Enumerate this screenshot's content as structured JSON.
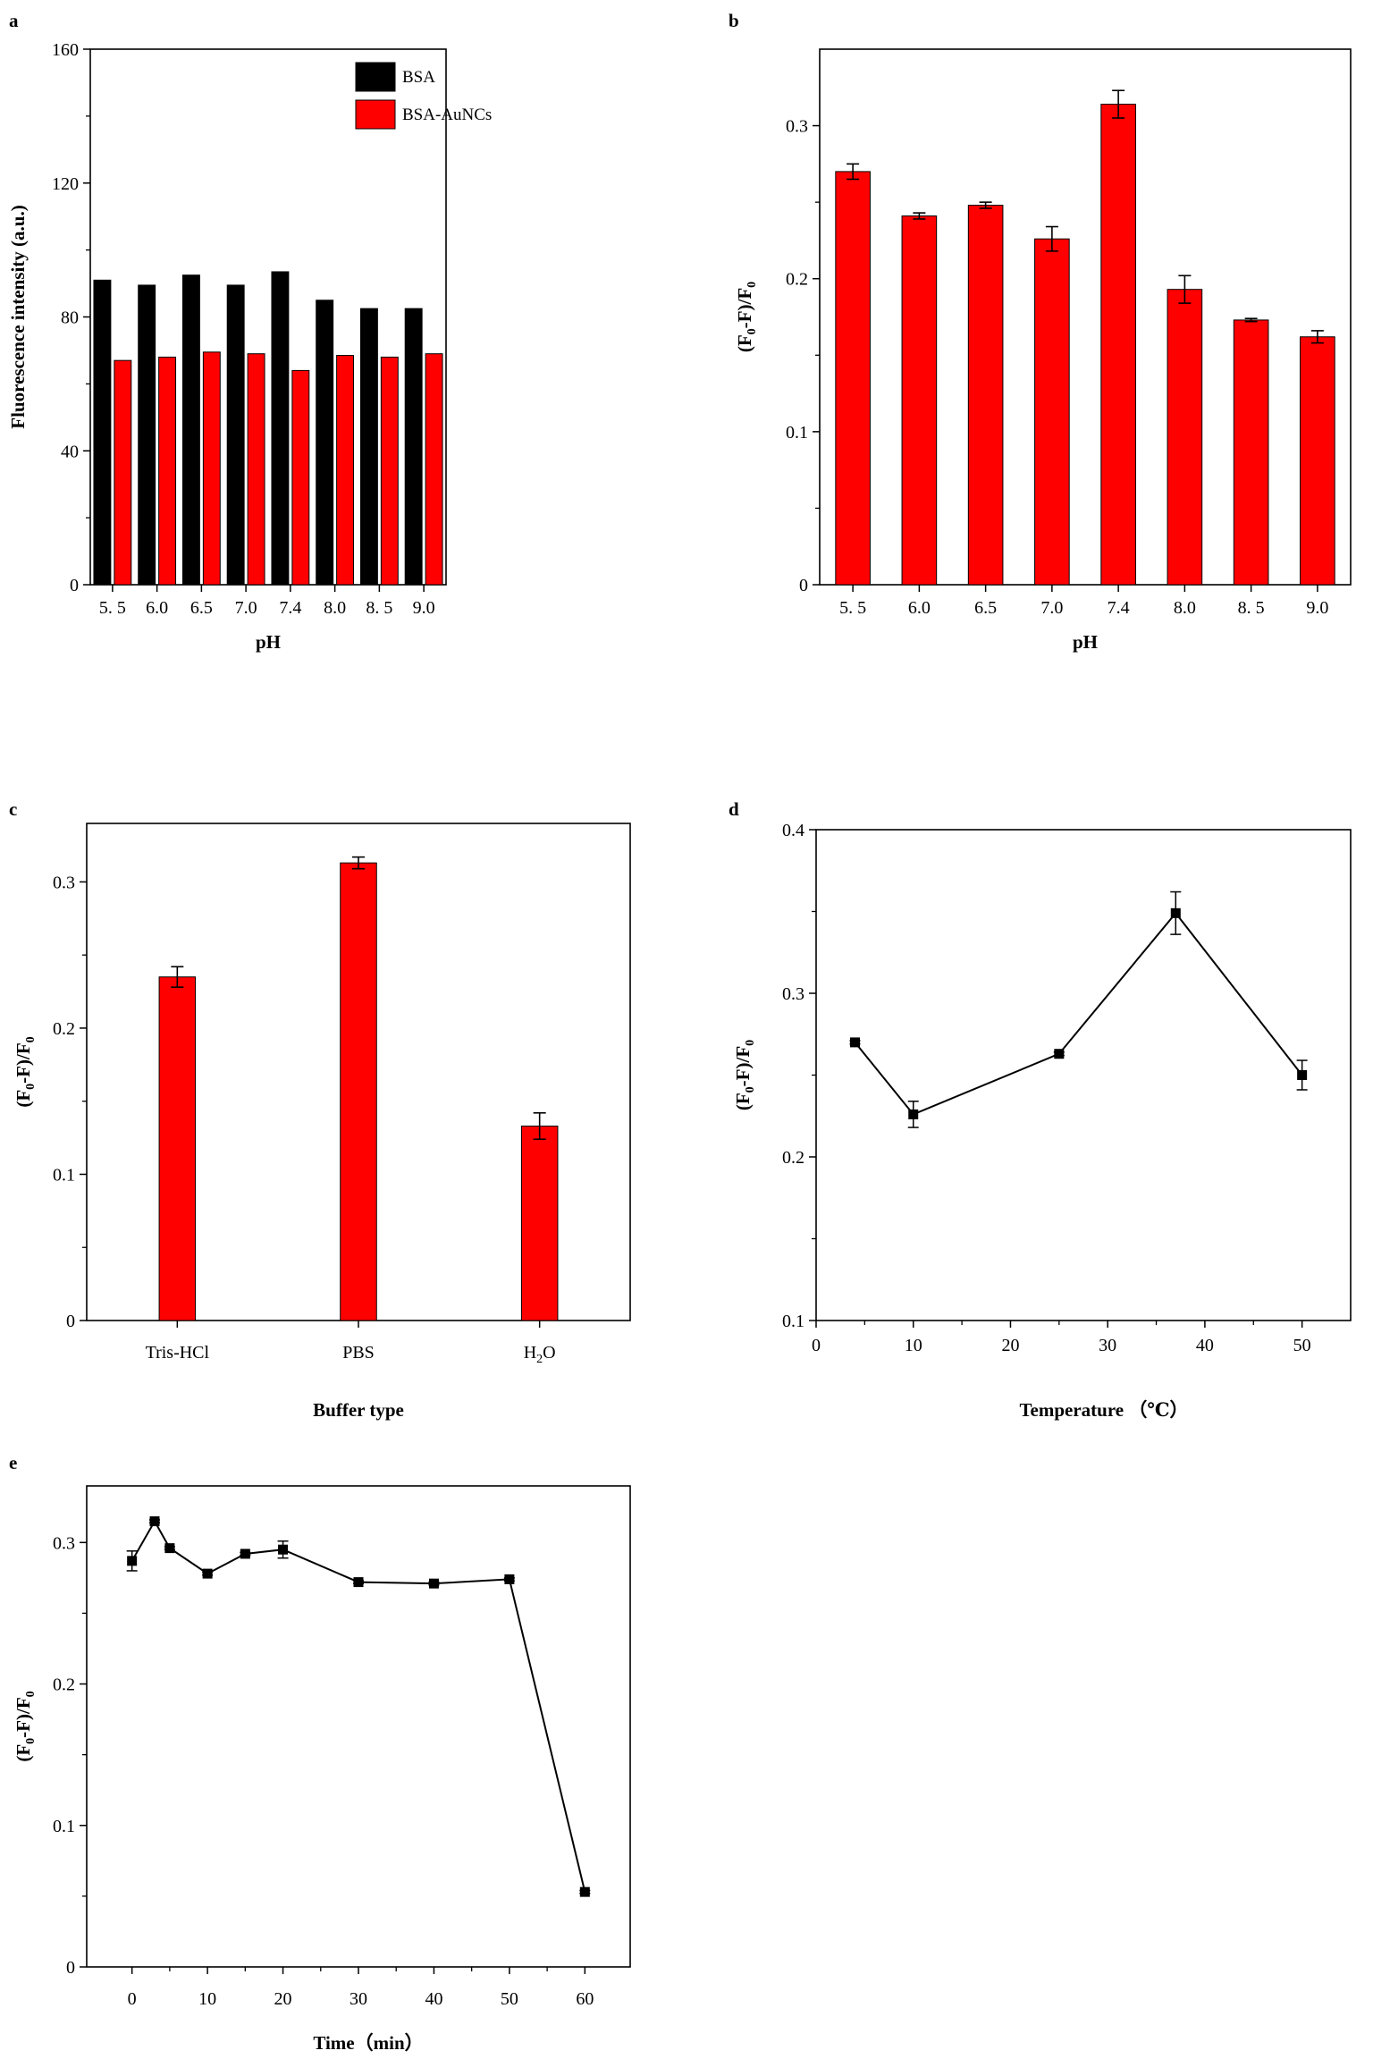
{
  "chart_data": [
    {
      "id": "a",
      "panel_label": "a",
      "type": "bar",
      "categories": [
        "5. 5",
        "6.0",
        "6.5",
        "7.0",
        "7.4",
        "8.0",
        "8. 5",
        "9.0"
      ],
      "series": [
        {
          "name": "BSA",
          "color": "#000000",
          "values": [
            91,
            89.5,
            92.5,
            89.5,
            93.5,
            85,
            82.5,
            82.5
          ]
        },
        {
          "name": "BSA-AuNCs",
          "color": "#ff0000",
          "values": [
            67,
            68,
            69.5,
            69,
            64,
            68.5,
            68,
            69
          ]
        }
      ],
      "xlabel": "pH",
      "ylabel": "Fluorescence intensity (a.u.)",
      "ylim": [
        0,
        160
      ],
      "yticks": [
        "0",
        "40",
        "80",
        "120",
        "160"
      ],
      "legend": "top-center"
    },
    {
      "id": "b",
      "panel_label": "b",
      "type": "bar",
      "categories": [
        "5. 5",
        "6.0",
        "6.5",
        "7.0",
        "7.4",
        "8.0",
        "8. 5",
        "9.0"
      ],
      "series": [
        {
          "name": "(F0-F)/F0",
          "color": "#ff0000",
          "values": [
            0.27,
            0.241,
            0.248,
            0.226,
            0.314,
            0.193,
            0.173,
            0.162
          ],
          "errors": [
            0.005,
            0.002,
            0.002,
            0.008,
            0.009,
            0.009,
            0.001,
            0.004
          ]
        }
      ],
      "xlabel": "pH",
      "ylabel": "(F0-F)/F0",
      "ylim": [
        0,
        0.35
      ],
      "yticks": [
        "0",
        "0.1",
        "0.2",
        "0.3"
      ]
    },
    {
      "id": "c",
      "panel_label": "c",
      "type": "bar",
      "categories": [
        "Tris-HCl",
        "PBS",
        "H2O"
      ],
      "series": [
        {
          "name": "(F0-F)/F0",
          "color": "#ff0000",
          "values": [
            0.235,
            0.313,
            0.133
          ],
          "errors": [
            0.007,
            0.004,
            0.009
          ]
        }
      ],
      "xlabel": "Buffer type",
      "ylabel": "(F0-F)/F0",
      "ylim": [
        0,
        0.34
      ],
      "yticks": [
        "0",
        "0.1",
        "0.2",
        "0.3"
      ]
    },
    {
      "id": "d",
      "panel_label": "d",
      "type": "line",
      "x": [
        4,
        10,
        25,
        37,
        50
      ],
      "series": [
        {
          "name": "(F0-F)/F0",
          "color": "#000000",
          "values": [
            0.27,
            0.226,
            0.263,
            0.349,
            0.25
          ],
          "errors": [
            0.001,
            0.008,
            0.001,
            0.013,
            0.009
          ]
        }
      ],
      "xlabel": "Temperature （℃）",
      "ylabel": "(F0-F)/F0",
      "xlim": [
        0,
        55
      ],
      "ylim": [
        0.1,
        0.4
      ],
      "xticks": [
        "0",
        "10",
        "20",
        "30",
        "40",
        "50"
      ],
      "yticks": [
        "0.1",
        "0.2",
        "0.3",
        "0.4"
      ]
    },
    {
      "id": "e",
      "panel_label": "e",
      "type": "line",
      "x": [
        0,
        3,
        5,
        10,
        15,
        20,
        30,
        40,
        50,
        60
      ],
      "series": [
        {
          "name": "(F0-F)/F0",
          "color": "#000000",
          "values": [
            0.287,
            0.315,
            0.296,
            0.278,
            0.292,
            0.295,
            0.272,
            0.271,
            0.274,
            0.053
          ],
          "errors": [
            0.007,
            0.001,
            0.001,
            0.001,
            0.001,
            0.006,
            0.001,
            0.001,
            0.001,
            0.001
          ]
        }
      ],
      "xlabel": "Time（min）",
      "ylabel": "(F0-F)/F0",
      "xlim": [
        -6,
        66
      ],
      "ylim": [
        0,
        0.34
      ],
      "xticks": [
        "0",
        "10",
        "20",
        "30",
        "40",
        "50",
        "60"
      ],
      "yticks": [
        "0",
        "0.1",
        "0.2",
        "0.3"
      ]
    }
  ]
}
